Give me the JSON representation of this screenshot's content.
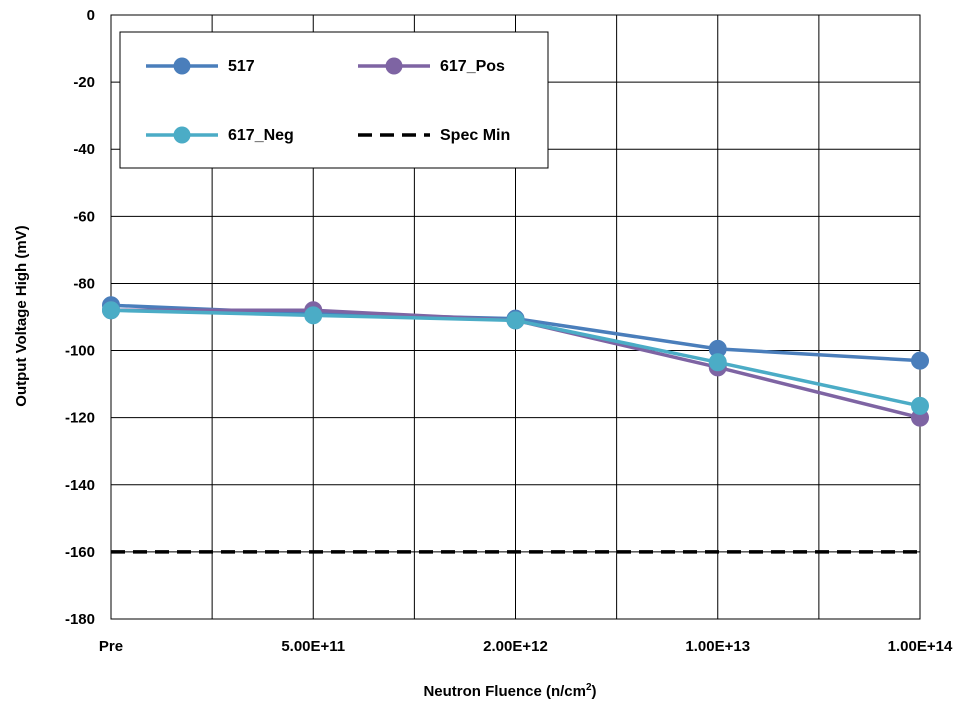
{
  "chart_data": {
    "type": "line",
    "title": "",
    "xlabel": "Neutron Fluence (n/cm²)",
    "xlabel_parts": {
      "main": "Neutron Fluence (n/cm",
      "sup": "2",
      "tail": ")"
    },
    "ylabel": "Output Voltage High (mV)",
    "categories": [
      "Pre",
      "",
      "5.00E+11",
      "",
      "2.00E+12",
      "",
      "1.00E+13",
      "",
      "1.00E+14"
    ],
    "ylim": [
      -180,
      0
    ],
    "yticks": [
      "0",
      "-20",
      "-40",
      "-60",
      "-80",
      "-100",
      "-120",
      "-140",
      "-160",
      "-180"
    ],
    "ytick_values": [
      0,
      -20,
      -40,
      -60,
      -80,
      -100,
      -120,
      -140,
      -160,
      -180
    ],
    "grid": true,
    "legend_position": "top-left",
    "series": [
      {
        "name": "517",
        "color": "#4a7ebb",
        "style": "line-marker",
        "x": [
          0,
          2,
          4,
          6,
          8
        ],
        "values": [
          -86.5,
          -89,
          -90.5,
          -99.5,
          -103
        ]
      },
      {
        "name": "617_Pos",
        "color": "#7e64a3",
        "style": "line-marker",
        "x": [
          0,
          2,
          4,
          6,
          8
        ],
        "values": [
          -88,
          -88,
          -91,
          -105,
          -120
        ]
      },
      {
        "name": "617_Neg",
        "color": "#4bacc6",
        "style": "line-marker",
        "x": [
          0,
          2,
          4,
          6,
          8
        ],
        "values": [
          -88,
          -89.5,
          -91,
          -103.5,
          -116.5
        ]
      },
      {
        "name": "Spec Min",
        "color": "#000000",
        "style": "dashed",
        "x": [
          0,
          8
        ],
        "values": [
          -160,
          -160
        ]
      }
    ]
  }
}
